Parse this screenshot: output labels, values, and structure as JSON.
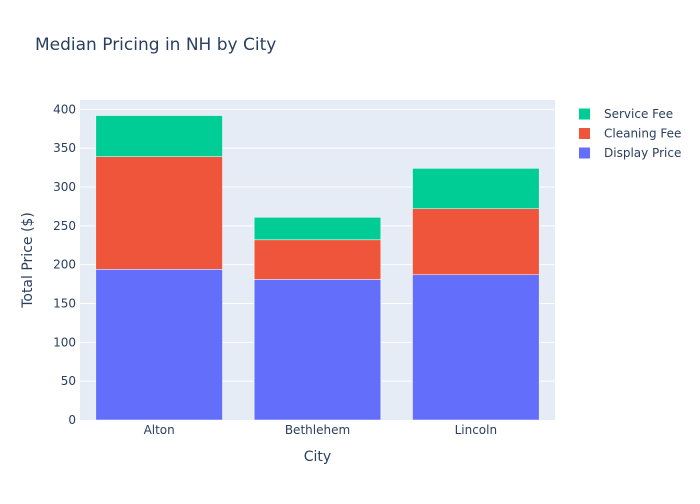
{
  "chart_data": {
    "type": "bar",
    "stacked": true,
    "title": "Median Pricing in NH by City",
    "xlabel": "City",
    "ylabel": "Total Price ($)",
    "categories": [
      "Alton",
      "Bethlehem",
      "Lincoln"
    ],
    "series": [
      {
        "name": "Display Price",
        "color": "#636efa",
        "values": [
          194,
          181,
          187
        ]
      },
      {
        "name": "Cleaning Fee",
        "color": "#ef553b",
        "values": [
          145,
          51,
          85
        ]
      },
      {
        "name": "Service Fee",
        "color": "#00cc96",
        "values": [
          53,
          29,
          52
        ]
      }
    ],
    "ylim": [
      0,
      412
    ],
    "yticks": [
      0,
      50,
      100,
      150,
      200,
      250,
      300,
      350,
      400
    ],
    "grid": true,
    "legend_position": "top-right",
    "legend_order": [
      "Service Fee",
      "Cleaning Fee",
      "Display Price"
    ],
    "plot_background": "#e5ecf6"
  }
}
